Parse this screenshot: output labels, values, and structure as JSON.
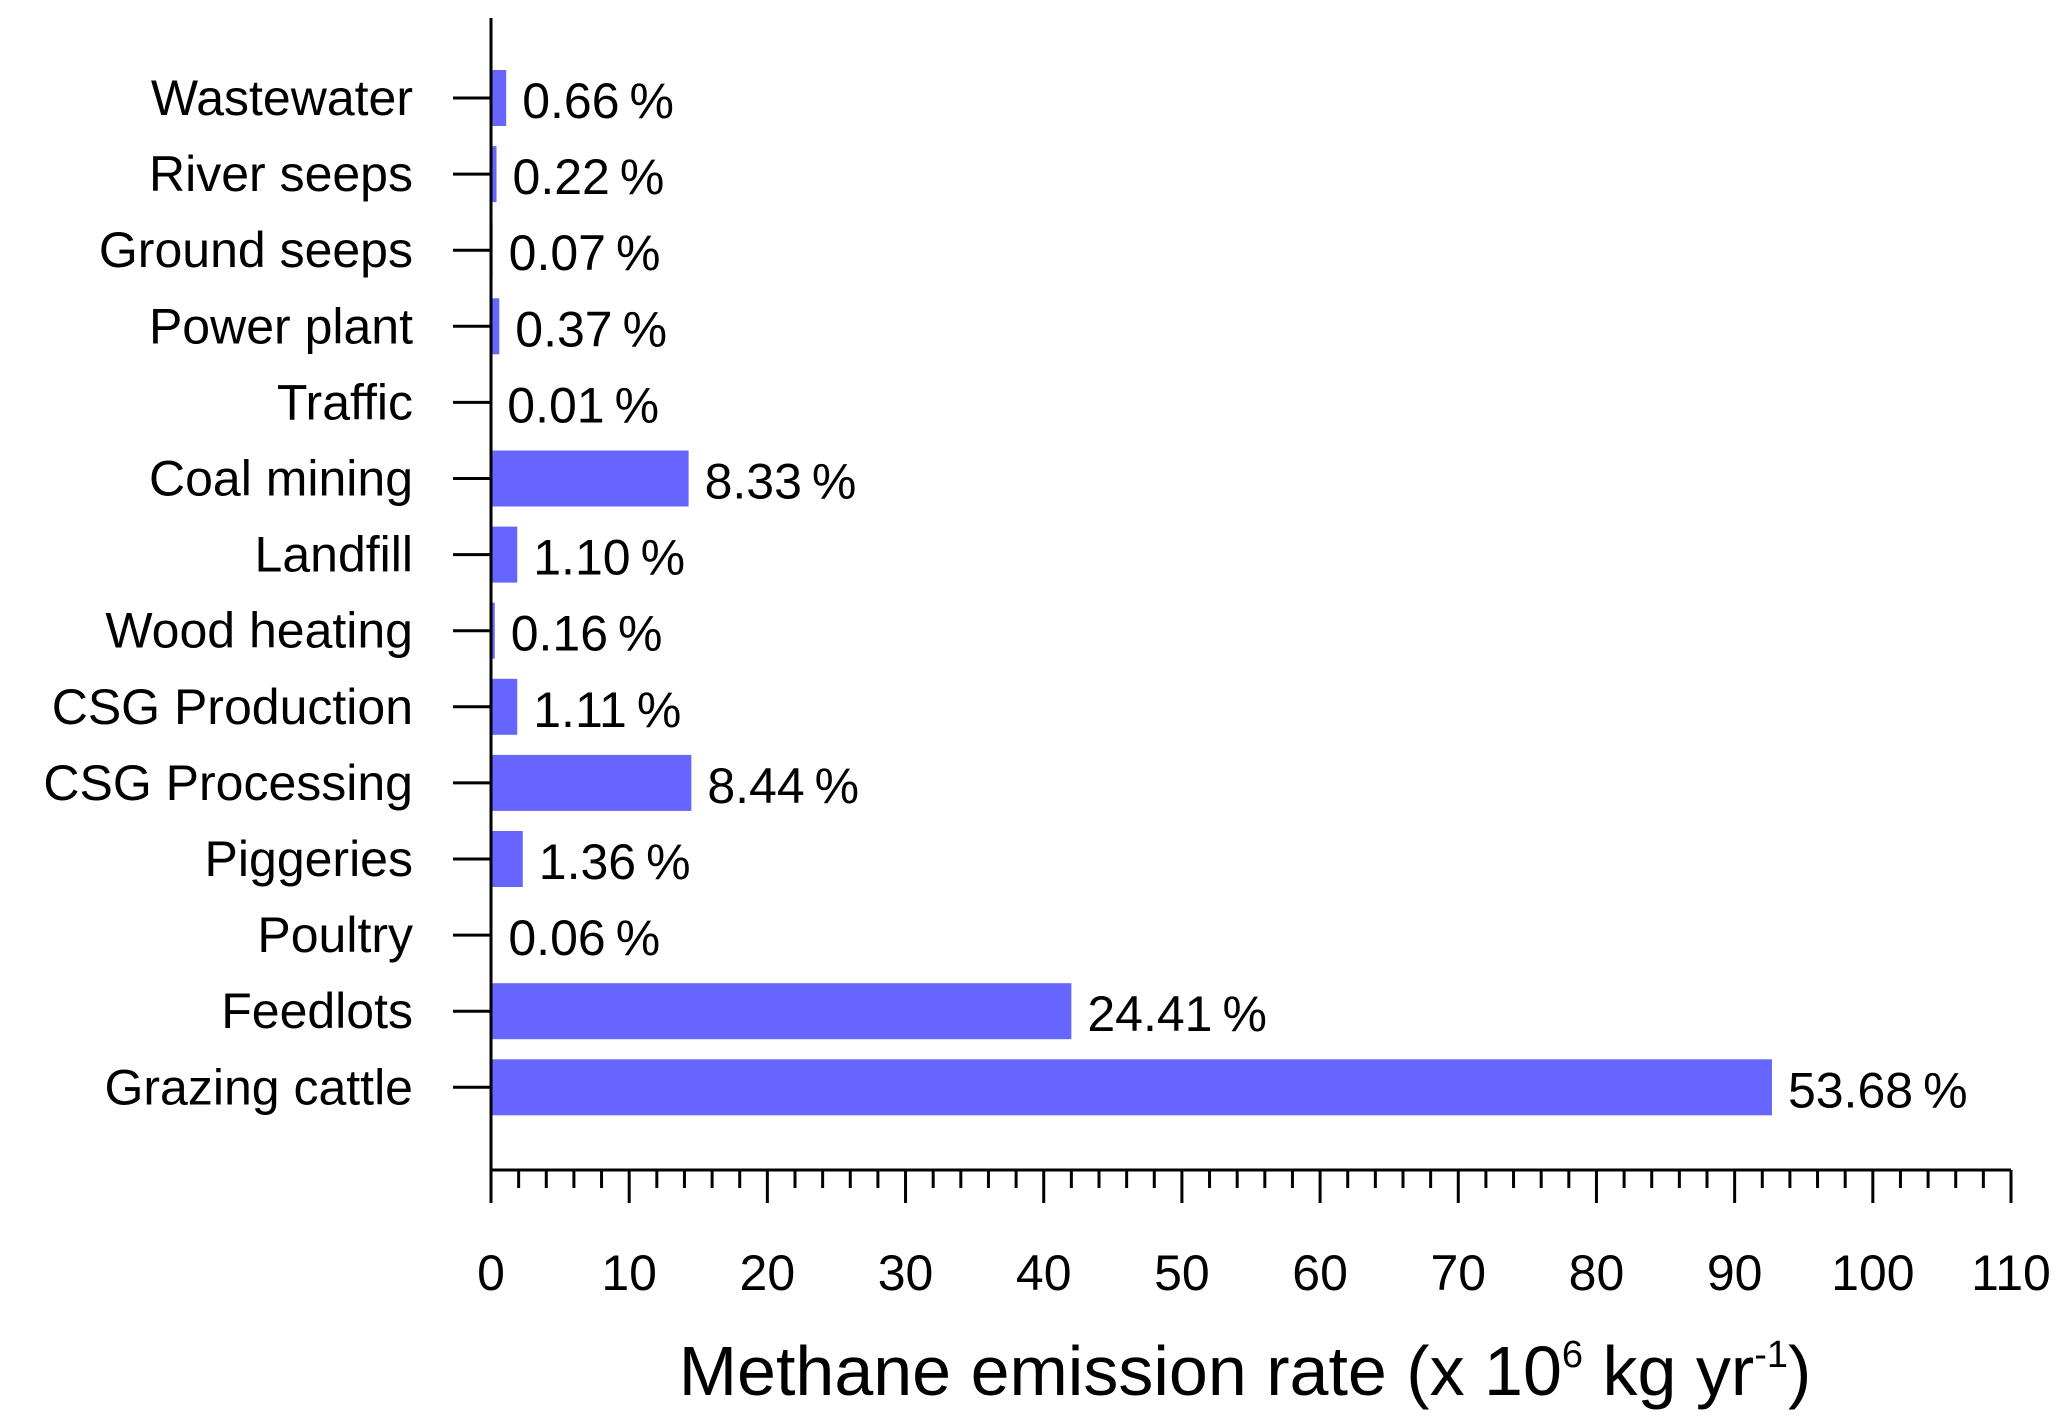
{
  "chart_data": {
    "type": "bar",
    "orientation": "horizontal",
    "categories": [
      "Wastewater",
      "River seeps",
      "Ground seeps",
      "Power plant",
      "Traffic",
      "Coal mining",
      "Landfill",
      "Wood heating",
      "CSG Production",
      "CSG Processing",
      "Piggeries",
      "Poultry",
      "Feedlots",
      "Grazing cattle"
    ],
    "values": [
      1.1,
      0.4,
      0.12,
      0.6,
      0.02,
      14.3,
      1.9,
      0.27,
      1.9,
      14.5,
      2.3,
      0.1,
      42.0,
      92.7
    ],
    "data_labels": [
      "0.66",
      "0.22",
      "0.07",
      "0.37",
      "0.01",
      "8.33",
      "1.10",
      "0.16",
      "1.11",
      "8.44",
      "1.36",
      "0.06",
      "24.41",
      "53.68"
    ],
    "data_label_unit": "%",
    "xlabel": {
      "main": "Methane emission rate (x 10",
      "sup1": "6",
      "mid": " kg yr",
      "sup2": "-1",
      "end": ")"
    },
    "ylabel": "",
    "title": "",
    "xlim": [
      0,
      110
    ],
    "xticks": [
      0,
      10,
      20,
      30,
      40,
      50,
      60,
      70,
      80,
      90,
      100,
      110
    ],
    "x_tick_labels": [
      "0",
      "10",
      "20",
      "30",
      "40",
      "50",
      "60",
      "70",
      "80",
      "90",
      "100",
      "110"
    ],
    "minor_tick_step": 2,
    "bar_color": "#6666ff",
    "grid": false,
    "legend": "none"
  }
}
